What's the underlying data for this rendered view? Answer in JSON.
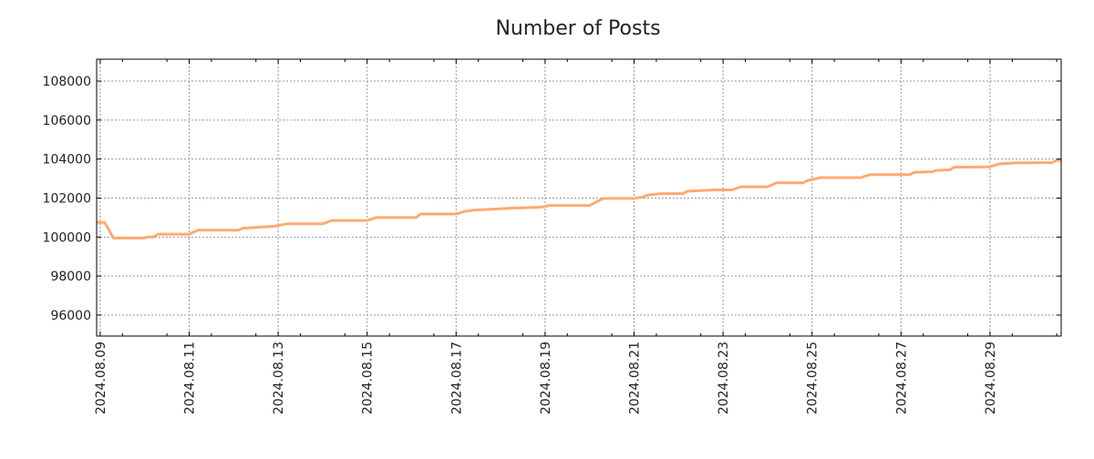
{
  "chart_data": {
    "type": "line",
    "title": "Number of Posts",
    "xlabel": "",
    "ylabel": "",
    "x_unit": "days since 2024.08.09",
    "xlim": [
      -0.08,
      21.6
    ],
    "ylim": [
      94925,
      109120
    ],
    "grid": true,
    "line_color": "#fcaa74",
    "yticks": [
      96000,
      98000,
      100000,
      102000,
      104000,
      106000,
      108000
    ],
    "xticks": [
      {
        "day": 0,
        "label": "2024.08.09"
      },
      {
        "day": 2,
        "label": "2024.08.11"
      },
      {
        "day": 4,
        "label": "2024.08.13"
      },
      {
        "day": 6,
        "label": "2024.08.15"
      },
      {
        "day": 8,
        "label": "2024.08.17"
      },
      {
        "day": 10,
        "label": "2024.08.19"
      },
      {
        "day": 12,
        "label": "2024.08.21"
      },
      {
        "day": 14,
        "label": "2024.08.23"
      },
      {
        "day": 16,
        "label": "2024.08.25"
      },
      {
        "day": 18,
        "label": "2024.08.27"
      },
      {
        "day": 20,
        "label": "2024.08.29"
      }
    ],
    "series": [
      {
        "name": "Number of Posts",
        "x": [
          -0.08,
          0.1,
          0.3,
          1.0,
          1.05,
          1.2,
          1.3,
          2.0,
          2.2,
          3.1,
          3.2,
          3.5,
          3.9,
          4.2,
          5.0,
          5.2,
          6.0,
          6.2,
          7.1,
          7.2,
          8.0,
          8.2,
          8.4,
          9.2,
          9.9,
          10.1,
          11.0,
          11.3,
          12.0,
          12.2,
          12.3,
          12.6,
          13.1,
          13.2,
          13.8,
          14.2,
          14.4,
          15.0,
          15.2,
          15.8,
          15.9,
          16.2,
          17.1,
          17.3,
          18.2,
          18.3,
          18.7,
          18.8,
          19.1,
          19.2,
          20.0,
          20.2,
          20.6,
          21.4,
          21.5,
          21.6
        ],
        "y": [
          100750,
          100750,
          99950,
          99950,
          100000,
          100000,
          100150,
          100150,
          100350,
          100350,
          100450,
          100500,
          100550,
          100680,
          100680,
          100850,
          100850,
          101000,
          101000,
          101180,
          101180,
          101320,
          101380,
          101480,
          101530,
          101620,
          101620,
          101980,
          101980,
          102050,
          102150,
          102230,
          102230,
          102350,
          102420,
          102420,
          102580,
          102580,
          102780,
          102780,
          102900,
          103050,
          103050,
          103200,
          103200,
          103320,
          103350,
          103420,
          103450,
          103580,
          103600,
          103750,
          103800,
          103820,
          103930,
          103930
        ]
      }
    ]
  }
}
